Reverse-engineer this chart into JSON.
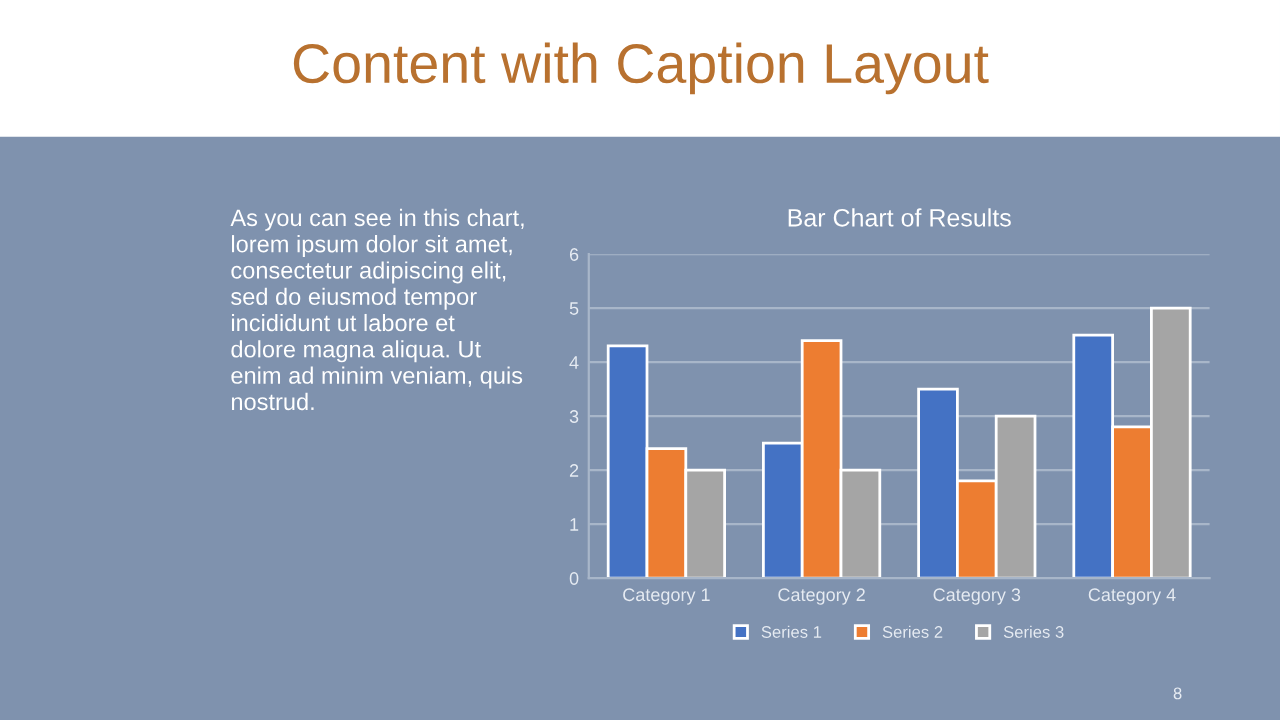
{
  "chart_data": {
    "type": "bar",
    "title": "Content with Caption Layout",
    "subtitle": "Bar Chart of Results",
    "categories": [
      "Category 1",
      "Category 2",
      "Category 3",
      "Category 4"
    ],
    "series": [
      {
        "name": "Series 1",
        "color": "#4472c4",
        "values": [
          4.3,
          2.5,
          3.5,
          4.5
        ]
      },
      {
        "name": "Series 2",
        "color": "#ed7d31",
        "values": [
          2.4,
          4.4,
          1.8,
          2.8
        ]
      },
      {
        "name": "Series 3",
        "color": "#a5a5a5",
        "values": [
          2,
          2,
          3,
          5
        ]
      }
    ],
    "ylim": [
      0,
      6
    ],
    "yticks": [
      0,
      1,
      2,
      3,
      4,
      5,
      6
    ],
    "grid": "y",
    "legend": "bottom",
    "annotations": [
      "As you can see in this chart,\nlorem ipsum dolor sit amet,\nconsectetur adipiscing elit,\nsed do eiusmod tempor\nincididunt ut labore et\ndolore magna aliqua. Ut\nenim ad minim veniam, quis\nnostrud.",
      "8"
    ]
  }
}
